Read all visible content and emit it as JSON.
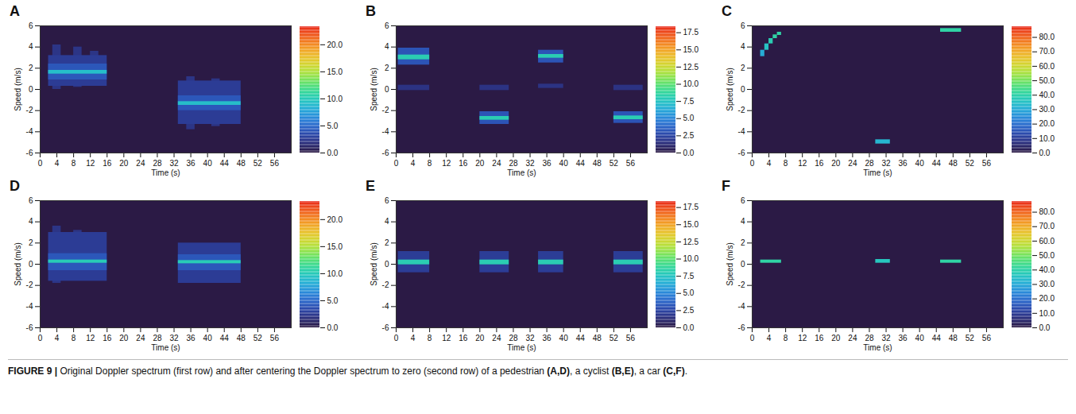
{
  "chart_data": [
    {
      "type": "heatmap",
      "panel": "A",
      "xlabel": "Time (s)",
      "ylabel": "Speed (m/s)",
      "xlim": [
        0,
        60
      ],
      "xticks": [
        0,
        4,
        8,
        12,
        16,
        20,
        24,
        28,
        32,
        36,
        40,
        44,
        48,
        52,
        56
      ],
      "ylim": [
        -6,
        6
      ],
      "yticks": [
        -6,
        -4,
        -2,
        0,
        2,
        4,
        6
      ],
      "cells": [
        [
          3,
          5,
          0.0,
          4.2,
          2
        ],
        [
          8,
          10,
          0.2,
          4.0,
          2
        ],
        [
          12,
          14,
          0.4,
          3.6,
          2
        ],
        [
          2,
          16,
          0.3,
          3.2,
          2.5
        ],
        [
          2,
          16,
          0.9,
          2.4,
          4
        ],
        [
          2,
          16,
          1.45,
          1.8,
          9
        ],
        [
          35,
          37,
          -3.8,
          1.2,
          2
        ],
        [
          41,
          43,
          -3.5,
          1.0,
          2
        ],
        [
          33,
          48,
          -3.3,
          0.8,
          2.5
        ],
        [
          33,
          48,
          -2.0,
          -0.6,
          4
        ],
        [
          33,
          48,
          -1.5,
          -1.15,
          9
        ]
      ],
      "colorbar": {
        "range": [
          0,
          23.5
        ],
        "ticks": [
          {
            "value": 0,
            "label": "0.0"
          },
          {
            "value": 5,
            "label": "5.0"
          },
          {
            "value": 10,
            "label": "10.0"
          },
          {
            "value": 15,
            "label": "15.0"
          },
          {
            "value": 20,
            "label": "20.0"
          }
        ]
      }
    },
    {
      "type": "heatmap",
      "panel": "B",
      "xlabel": "Time (s)",
      "ylabel": "Speed (m/s)",
      "xlim": [
        0,
        60
      ],
      "xticks": [
        0,
        4,
        8,
        12,
        16,
        20,
        24,
        28,
        32,
        36,
        40,
        44,
        48,
        52,
        56
      ],
      "ylim": [
        -6,
        6
      ],
      "yticks": [
        -6,
        -4,
        -2,
        0,
        2,
        4,
        6
      ],
      "cells": [
        [
          0.5,
          8,
          2.3,
          3.9,
          3
        ],
        [
          0.5,
          8,
          2.8,
          3.25,
          8
        ],
        [
          0.5,
          8,
          -0.1,
          0.4,
          1.5
        ],
        [
          20,
          27,
          -3.3,
          -2.1,
          3
        ],
        [
          20,
          27,
          -2.9,
          -2.55,
          8
        ],
        [
          20,
          27,
          -0.1,
          0.4,
          1.5
        ],
        [
          34,
          40,
          2.5,
          3.7,
          3
        ],
        [
          34,
          40,
          2.95,
          3.3,
          8
        ],
        [
          34,
          40,
          0.1,
          0.5,
          1.5
        ],
        [
          52,
          59,
          -3.2,
          -2.1,
          3
        ],
        [
          52,
          59,
          -2.85,
          -2.5,
          8
        ],
        [
          52,
          59,
          -0.1,
          0.4,
          1.5
        ]
      ],
      "colorbar": {
        "range": [
          0,
          18.5
        ],
        "ticks": [
          {
            "value": 0,
            "label": "0.0"
          },
          {
            "value": 2.5,
            "label": "2.5"
          },
          {
            "value": 5,
            "label": "5.0"
          },
          {
            "value": 7.5,
            "label": "7.5"
          },
          {
            "value": 10,
            "label": "10.0"
          },
          {
            "value": 12.5,
            "label": "12.5"
          },
          {
            "value": 15,
            "label": "15.0"
          },
          {
            "value": 17.5,
            "label": "17.5"
          }
        ]
      }
    },
    {
      "type": "heatmap",
      "panel": "C",
      "xlabel": "Time (s)",
      "ylabel": "Speed (m/s)",
      "xlim": [
        0,
        60
      ],
      "xticks": [
        0,
        4,
        8,
        12,
        16,
        20,
        24,
        28,
        32,
        36,
        40,
        44,
        48,
        52,
        56
      ],
      "ylim": [
        -6,
        6
      ],
      "yticks": [
        -6,
        -4,
        -2,
        0,
        2,
        4,
        6
      ],
      "cells": [
        [
          2,
          3,
          3.1,
          3.7,
          30
        ],
        [
          3,
          4,
          3.7,
          4.3,
          35
        ],
        [
          4,
          5,
          4.3,
          4.8,
          38
        ],
        [
          5,
          6,
          4.8,
          5.15,
          40
        ],
        [
          6,
          7,
          5.1,
          5.4,
          40
        ],
        [
          29.5,
          33,
          -5.15,
          -4.75,
          32
        ],
        [
          45,
          50,
          5.4,
          5.75,
          40
        ]
      ],
      "colorbar": {
        "range": [
          0,
          88
        ],
        "ticks": [
          {
            "value": 0,
            "label": "0.0"
          },
          {
            "value": 10,
            "label": "10.0"
          },
          {
            "value": 20,
            "label": "20.0"
          },
          {
            "value": 30,
            "label": "30.0"
          },
          {
            "value": 40,
            "label": "40.0"
          },
          {
            "value": 50,
            "label": "50.0"
          },
          {
            "value": 60,
            "label": "60.0"
          },
          {
            "value": 70,
            "label": "70.0"
          },
          {
            "value": 80,
            "label": "80.0"
          }
        ]
      }
    },
    {
      "type": "heatmap",
      "panel": "D",
      "xlabel": "Time (s)",
      "ylabel": "Speed (m/s)",
      "xlim": [
        0,
        60
      ],
      "xticks": [
        0,
        4,
        8,
        12,
        16,
        20,
        24,
        28,
        32,
        36,
        40,
        44,
        48,
        52,
        56
      ],
      "ylim": [
        -6,
        6
      ],
      "yticks": [
        -6,
        -4,
        -2,
        0,
        2,
        4,
        6
      ],
      "cells": [
        [
          3,
          5,
          -1.8,
          3.6,
          2
        ],
        [
          8,
          10,
          -1.5,
          3.2,
          2
        ],
        [
          2,
          16,
          -1.6,
          3.0,
          2.5
        ],
        [
          2,
          16,
          -0.6,
          1.0,
          4
        ],
        [
          2,
          16,
          0.1,
          0.4,
          10
        ],
        [
          33,
          48,
          -1.8,
          2.0,
          2.5
        ],
        [
          33,
          48,
          -0.6,
          0.9,
          4
        ],
        [
          33,
          48,
          0.05,
          0.35,
          10
        ]
      ],
      "colorbar": {
        "range": [
          0,
          23.5
        ],
        "ticks": [
          {
            "value": 0,
            "label": "0.0"
          },
          {
            "value": 5,
            "label": "5.0"
          },
          {
            "value": 10,
            "label": "10.0"
          },
          {
            "value": 15,
            "label": "15.0"
          },
          {
            "value": 20,
            "label": "20.0"
          }
        ]
      }
    },
    {
      "type": "heatmap",
      "panel": "E",
      "xlabel": "Time (s)",
      "ylabel": "Speed (m/s)",
      "xlim": [
        0,
        60
      ],
      "xticks": [
        0,
        4,
        8,
        12,
        16,
        20,
        24,
        28,
        32,
        36,
        40,
        44,
        48,
        52,
        56
      ],
      "ylim": [
        -6,
        6
      ],
      "yticks": [
        -6,
        -4,
        -2,
        0,
        2,
        4,
        6
      ],
      "cells": [
        [
          0.5,
          8,
          -0.8,
          1.2,
          2
        ],
        [
          0.5,
          8,
          -0.05,
          0.4,
          8
        ],
        [
          20,
          27,
          -0.8,
          1.2,
          2
        ],
        [
          20,
          27,
          -0.05,
          0.4,
          8
        ],
        [
          34,
          40,
          -0.8,
          1.2,
          2
        ],
        [
          34,
          40,
          -0.05,
          0.4,
          8
        ],
        [
          52,
          59,
          -0.8,
          1.2,
          2
        ],
        [
          52,
          59,
          -0.05,
          0.4,
          8
        ]
      ],
      "colorbar": {
        "range": [
          0,
          18.5
        ],
        "ticks": [
          {
            "value": 0,
            "label": "0.0"
          },
          {
            "value": 2.5,
            "label": "2.5"
          },
          {
            "value": 5,
            "label": "5.0"
          },
          {
            "value": 7.5,
            "label": "7.5"
          },
          {
            "value": 10,
            "label": "10.0"
          },
          {
            "value": 12.5,
            "label": "12.5"
          },
          {
            "value": 15,
            "label": "15.0"
          },
          {
            "value": 17.5,
            "label": "17.5"
          }
        ]
      }
    },
    {
      "type": "heatmap",
      "panel": "F",
      "xlabel": "Time (s)",
      "ylabel": "Speed (m/s)",
      "xlim": [
        0,
        60
      ],
      "xticks": [
        0,
        4,
        8,
        12,
        16,
        20,
        24,
        28,
        32,
        36,
        40,
        44,
        48,
        52,
        56
      ],
      "ylim": [
        -6,
        6
      ],
      "yticks": [
        -6,
        -4,
        -2,
        0,
        2,
        4,
        6
      ],
      "cells": [
        [
          2,
          7,
          0.1,
          0.4,
          40
        ],
        [
          29.5,
          33,
          0.1,
          0.45,
          36
        ],
        [
          45,
          50,
          0.1,
          0.4,
          40
        ]
      ],
      "colorbar": {
        "range": [
          0,
          88
        ],
        "ticks": [
          {
            "value": 0,
            "label": "0.0"
          },
          {
            "value": 10,
            "label": "10.0"
          },
          {
            "value": 20,
            "label": "20.0"
          },
          {
            "value": 30,
            "label": "30.0"
          },
          {
            "value": 40,
            "label": "40.0"
          },
          {
            "value": 50,
            "label": "50.0"
          },
          {
            "value": 60,
            "label": "60.0"
          },
          {
            "value": 70,
            "label": "70.0"
          },
          {
            "value": 80,
            "label": "80.0"
          }
        ]
      }
    }
  ],
  "caption": {
    "label": "FIGURE 9 |",
    "text": "Original Doppler spectrum (first row) and after centering the Doppler spectrum to zero (second row) of a pedestrian (A,D), a cyclist (B,E), a car (C,F)."
  }
}
